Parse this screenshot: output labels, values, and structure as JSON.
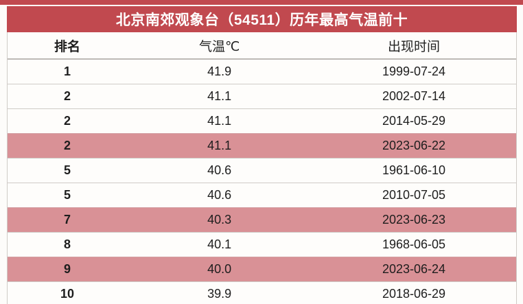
{
  "title": "北京南郊观象台（54511）历年最高气温前十",
  "chart_data": {
    "type": "table",
    "columns": [
      "排名",
      "气温℃",
      "出现时间"
    ],
    "rows": [
      {
        "rank": "1",
        "temp": "41.9",
        "date": "1999-07-24",
        "highlight": false
      },
      {
        "rank": "2",
        "temp": "41.1",
        "date": "2002-07-14",
        "highlight": false
      },
      {
        "rank": "2",
        "temp": "41.1",
        "date": "2014-05-29",
        "highlight": false
      },
      {
        "rank": "2",
        "temp": "41.1",
        "date": "2023-06-22",
        "highlight": true
      },
      {
        "rank": "5",
        "temp": "40.6",
        "date": "1961-06-10",
        "highlight": false
      },
      {
        "rank": "5",
        "temp": "40.6",
        "date": "2010-07-05",
        "highlight": false
      },
      {
        "rank": "7",
        "temp": "40.3",
        "date": "2023-06-23",
        "highlight": true
      },
      {
        "rank": "8",
        "temp": "40.1",
        "date": "1968-06-05",
        "highlight": false
      },
      {
        "rank": "9",
        "temp": "40.0",
        "date": "2023-06-24",
        "highlight": true
      },
      {
        "rank": "10",
        "temp": "39.9",
        "date": "2018-06-29",
        "highlight": false
      }
    ]
  },
  "colors": {
    "header_red": "#c1494f",
    "highlight_pink": "#d99196"
  }
}
